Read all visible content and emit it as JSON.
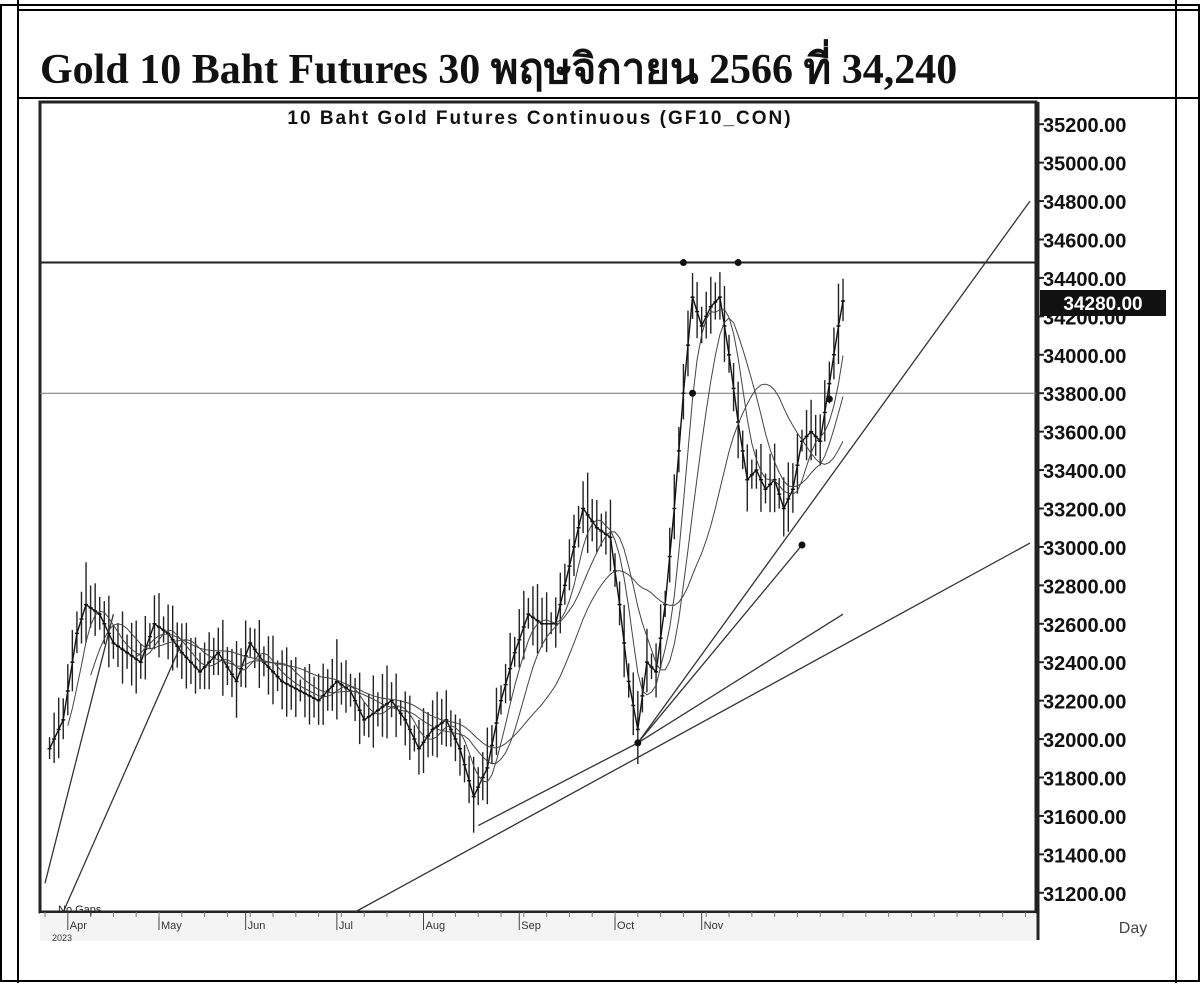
{
  "page": {
    "heading": "Gold 10 Baht Futures 30 พฤษจิกายน 2566 ที่ 34,240"
  },
  "chart_data": {
    "type": "candlestick",
    "title": "10 Baht Gold Futures Continuous (GF10_CON)",
    "period_label": "Day",
    "gaps_label": "No Gaps",
    "year_label": "2023",
    "last_price_label": "34280.00",
    "ylim": [
      31100,
      35300
    ],
    "y_ticks": [
      35200,
      35000,
      34800,
      34600,
      34400,
      34200,
      34000,
      33800,
      33600,
      33400,
      33200,
      33000,
      32800,
      32600,
      32400,
      32200,
      32000,
      31800,
      31600,
      31400,
      31200
    ],
    "x_months": [
      {
        "label": "Apr",
        "day": 5
      },
      {
        "label": "May",
        "day": 25
      },
      {
        "label": "Jun",
        "day": 44
      },
      {
        "label": "Jul",
        "day": 64
      },
      {
        "label": "Aug",
        "day": 83
      },
      {
        "label": "Sep",
        "day": 104
      },
      {
        "label": "Oct",
        "day": 125
      },
      {
        "label": "Nov",
        "day": 144
      }
    ],
    "total_days": 216,
    "close_series": [
      {
        "day": 1,
        "value": 31950
      },
      {
        "day": 4,
        "value": 32100
      },
      {
        "day": 7,
        "value": 32550
      },
      {
        "day": 9,
        "value": 32700
      },
      {
        "day": 12,
        "value": 32650
      },
      {
        "day": 15,
        "value": 32500
      },
      {
        "day": 18,
        "value": 32450
      },
      {
        "day": 21,
        "value": 32400
      },
      {
        "day": 24,
        "value": 32600
      },
      {
        "day": 27,
        "value": 32550
      },
      {
        "day": 30,
        "value": 32450
      },
      {
        "day": 34,
        "value": 32350
      },
      {
        "day": 38,
        "value": 32450
      },
      {
        "day": 42,
        "value": 32300
      },
      {
        "day": 45,
        "value": 32500
      },
      {
        "day": 48,
        "value": 32400
      },
      {
        "day": 52,
        "value": 32300
      },
      {
        "day": 56,
        "value": 32250
      },
      {
        "day": 60,
        "value": 32200
      },
      {
        "day": 64,
        "value": 32300
      },
      {
        "day": 67,
        "value": 32250
      },
      {
        "day": 70,
        "value": 32100
      },
      {
        "day": 73,
        "value": 32150
      },
      {
        "day": 76,
        "value": 32200
      },
      {
        "day": 79,
        "value": 32100
      },
      {
        "day": 82,
        "value": 31950
      },
      {
        "day": 85,
        "value": 32050
      },
      {
        "day": 88,
        "value": 32100
      },
      {
        "day": 91,
        "value": 31950
      },
      {
        "day": 94,
        "value": 31700
      },
      {
        "day": 97,
        "value": 31850
      },
      {
        "day": 100,
        "value": 32200
      },
      {
        "day": 103,
        "value": 32450
      },
      {
        "day": 106,
        "value": 32650
      },
      {
        "day": 109,
        "value": 32600
      },
      {
        "day": 112,
        "value": 32600
      },
      {
        "day": 115,
        "value": 32900
      },
      {
        "day": 118,
        "value": 33200
      },
      {
        "day": 121,
        "value": 33100
      },
      {
        "day": 124,
        "value": 33050
      },
      {
        "day": 126,
        "value": 32700
      },
      {
        "day": 128,
        "value": 32300
      },
      {
        "day": 130,
        "value": 32050
      },
      {
        "day": 132,
        "value": 32400
      },
      {
        "day": 134,
        "value": 32350
      },
      {
        "day": 136,
        "value": 32700
      },
      {
        "day": 138,
        "value": 33200
      },
      {
        "day": 140,
        "value": 33800
      },
      {
        "day": 142,
        "value": 34300
      },
      {
        "day": 144,
        "value": 34150
      },
      {
        "day": 146,
        "value": 34250
      },
      {
        "day": 148,
        "value": 34300
      },
      {
        "day": 150,
        "value": 34000
      },
      {
        "day": 152,
        "value": 33650
      },
      {
        "day": 154,
        "value": 33350
      },
      {
        "day": 156,
        "value": 33400
      },
      {
        "day": 158,
        "value": 33300
      },
      {
        "day": 160,
        "value": 33350
      },
      {
        "day": 162,
        "value": 33200
      },
      {
        "day": 164,
        "value": 33300
      },
      {
        "day": 166,
        "value": 33550
      },
      {
        "day": 168,
        "value": 33600
      },
      {
        "day": 170,
        "value": 33550
      },
      {
        "day": 172,
        "value": 33850
      },
      {
        "day": 174,
        "value": 34150
      },
      {
        "day": 175,
        "value": 34280
      }
    ],
    "horizontal_lines": [
      34480,
      33800
    ],
    "markers": [
      {
        "day": 140,
        "value": 34480
      },
      {
        "day": 152,
        "value": 34480
      },
      {
        "day": 130,
        "value": 31980
      },
      {
        "day": 166,
        "value": 33010
      },
      {
        "day": 142,
        "value": 33800
      },
      {
        "day": 172,
        "value": 33770
      }
    ],
    "trend_lines": [
      {
        "from": {
          "day": 0,
          "value": 31250
        },
        "to": {
          "day": 15,
          "value": 32650
        }
      },
      {
        "from": {
          "day": 4,
          "value": 31100
        },
        "to": {
          "day": 30,
          "value": 32500
        }
      },
      {
        "from": {
          "day": 95,
          "value": 31550
        },
        "to": {
          "day": 130,
          "value": 31980
        }
      },
      {
        "from": {
          "day": 68,
          "value": 31100
        },
        "to": {
          "day": 216,
          "value": 33020
        }
      },
      {
        "from": {
          "day": 130,
          "value": 31980
        },
        "to": {
          "day": 216,
          "value": 34800
        }
      },
      {
        "from": {
          "day": 130,
          "value": 31980
        },
        "to": {
          "day": 166,
          "value": 33010
        }
      },
      {
        "from": {
          "day": 130,
          "value": 31980
        },
        "to": {
          "day": 175,
          "value": 32650
        }
      }
    ],
    "colors": {
      "line": "#111111",
      "grid": "#999999",
      "background": "#ffffff"
    }
  }
}
